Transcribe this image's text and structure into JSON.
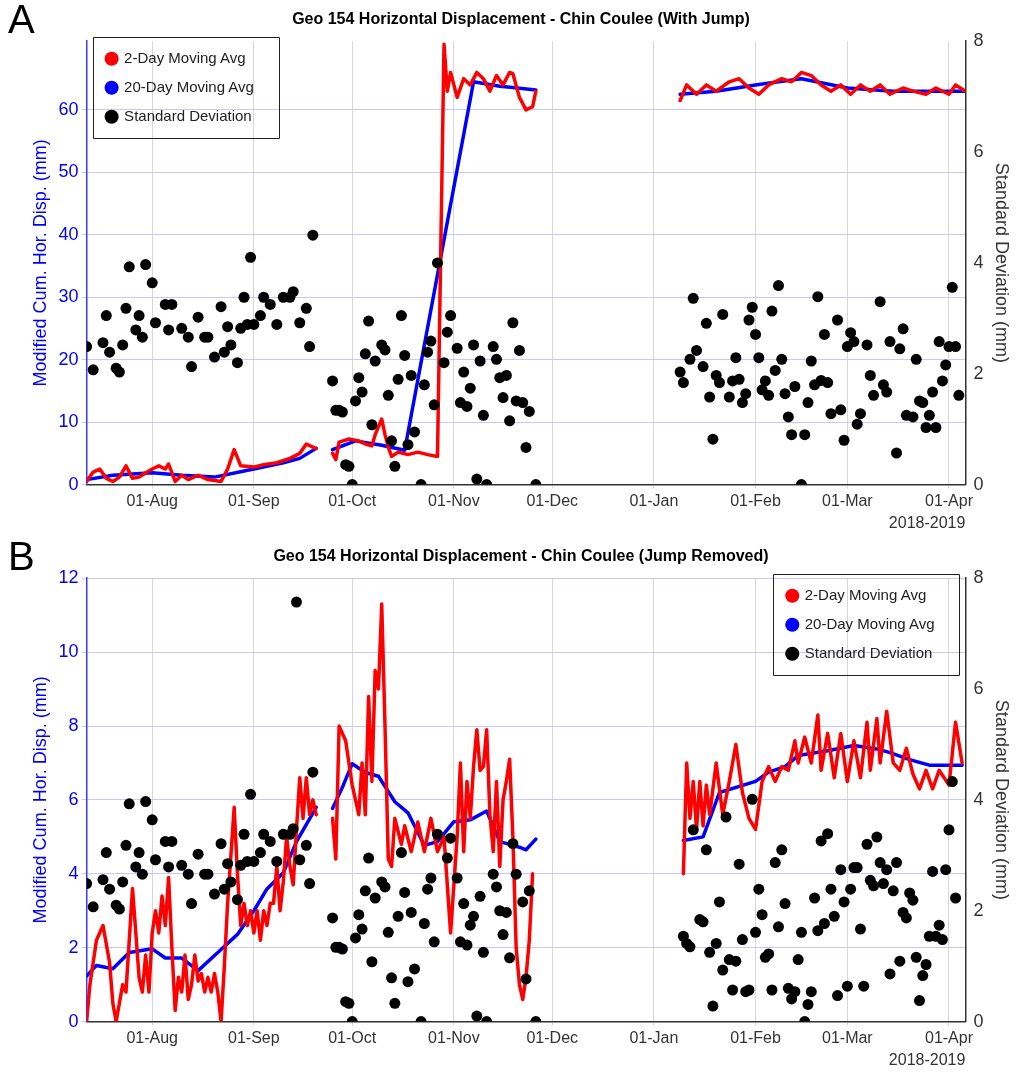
{
  "chart_data": [
    {
      "type": "line",
      "title": "Geo 154 Horizontal Displacement - Chin Coulee (With Jump)",
      "annotations": [
        "A"
      ],
      "xlabel": "2018-2019",
      "ylabel": "Modified Cum. Hor. Disp. (mm)",
      "y2label": "Standard Deviation (mm)",
      "xlim": [
        "2018-07-12",
        "2019-04-06"
      ],
      "xticks": [
        {
          "value": "2018-08-01",
          "label": "01-Aug"
        },
        {
          "value": "2018-09-01",
          "label": "01-Sep"
        },
        {
          "value": "2018-10-01",
          "label": "01-Oct"
        },
        {
          "value": "2018-11-01",
          "label": "01-Nov"
        },
        {
          "value": "2018-12-01",
          "label": "01-Dec"
        },
        {
          "value": "2019-01-01",
          "label": "01-Jan"
        },
        {
          "value": "2019-02-01",
          "label": "01-Feb"
        },
        {
          "value": "2019-03-01",
          "label": "01-Mar"
        },
        {
          "value": "2019-04-01",
          "label": "01-Apr"
        }
      ],
      "ylim": [
        0,
        71
      ],
      "yticks": [
        0,
        10,
        20,
        30,
        40,
        50,
        60
      ],
      "y2lim": [
        0,
        8
      ],
      "y2ticks": [
        0,
        2,
        4,
        6,
        8
      ],
      "grid": true,
      "legend": "top left",
      "series": [
        {
          "name": "2-Day Moving Avg",
          "color": "#ff0000",
          "x": [
            "2018-07-12",
            "2018-07-14",
            "2018-07-16",
            "2018-07-18",
            "2018-07-20",
            "2018-07-22",
            "2018-07-24",
            "2018-07-26",
            "2018-07-28",
            "2018-08-01",
            "2018-08-03",
            "2018-08-05",
            "2018-08-06",
            "2018-08-08",
            "2018-08-10",
            "2018-08-12",
            "2018-08-15",
            "2018-08-18",
            "2018-08-22",
            "2018-08-24",
            "2018-08-26",
            "2018-08-28",
            "2018-09-01",
            "2018-09-04",
            "2018-09-08",
            "2018-09-12",
            "2018-09-15",
            "2018-09-17",
            "2018-09-19",
            "2018-09-20",
            "2018-09-22",
            "2018-09-25",
            "2018-09-26",
            "2018-09-27",
            "2018-09-30",
            "2018-10-03",
            "2018-10-05",
            "2018-10-07",
            "2018-10-08",
            "2018-10-10",
            "2018-10-11",
            "2018-10-12",
            "2018-10-13",
            "2018-10-15",
            "2018-10-18",
            "2018-10-21",
            "2018-10-24",
            "2018-10-27",
            "2018-10-29",
            "2018-10-30",
            "2018-10-31",
            "2018-11-02",
            "2018-11-04",
            "2018-11-06",
            "2018-11-08",
            "2018-11-10",
            "2018-11-12",
            "2018-11-14",
            "2018-11-16",
            "2018-11-18",
            "2018-11-19",
            "2018-11-21",
            "2018-11-23",
            "2018-11-25",
            "2018-11-26",
            "2018-12-20",
            "2019-01-09",
            "2019-01-11",
            "2019-01-14",
            "2019-01-17",
            "2019-01-20",
            "2019-01-24",
            "2019-01-27",
            "2019-01-30",
            "2019-02-02",
            "2019-02-05",
            "2019-02-09",
            "2019-02-12",
            "2019-02-15",
            "2019-02-18",
            "2019-02-21",
            "2019-02-24",
            "2019-02-27",
            "2019-03-02",
            "2019-03-05",
            "2019-03-08",
            "2019-03-11",
            "2019-03-14",
            "2019-03-18",
            "2019-03-21",
            "2019-03-25",
            "2019-03-28",
            "2019-04-01",
            "2019-04-03",
            "2019-04-06"
          ],
          "values": [
            0.5,
            2,
            2.5,
            1,
            0.5,
            1.2,
            3,
            1,
            1.2,
            2.5,
            3,
            2.5,
            3.3,
            0.5,
            1.5,
            0.8,
            1.5,
            0.8,
            0.5,
            2.5,
            5.6,
            3,
            2.8,
            3.2,
            3.5,
            4.2,
            5,
            6.5,
            6,
            5.8,
            null,
            5,
            4,
            6.8,
            7.3,
            7,
            6.5,
            6.2,
            8,
            10.5,
            8,
            6,
            4.5,
            5.2,
            4.8,
            5.2,
            4.8,
            4.5,
            70.5,
            63,
            66,
            62,
            65,
            64,
            66,
            65,
            63,
            65.5,
            64,
            66,
            65.8,
            62,
            60,
            60.5,
            63,
            null,
            61.5,
            64,
            62.5,
            64,
            63,
            64.5,
            65,
            63.5,
            62.5,
            64,
            65,
            64.5,
            66,
            65.5,
            64,
            63,
            64,
            62.5,
            64,
            63,
            64,
            62.5,
            63.5,
            63,
            62.5,
            63.5,
            62.5,
            64,
            63
          ]
        },
        {
          "name": "20-Day Moving Avg",
          "color": "#0000ff",
          "x": [
            "2018-07-12",
            "2018-07-20",
            "2018-08-01",
            "2018-08-10",
            "2018-08-20",
            "2018-09-01",
            "2018-09-10",
            "2018-09-15",
            "2018-09-20",
            "2018-09-22",
            "2018-09-25",
            "2018-10-02",
            "2018-10-10",
            "2018-10-17",
            "2018-11-07",
            "2018-11-15",
            "2018-11-26",
            "2018-12-20",
            "2019-01-09",
            "2019-01-20",
            "2019-02-01",
            "2019-02-15",
            "2019-03-01",
            "2019-03-15",
            "2019-04-06"
          ],
          "values": [
            0.8,
            1.5,
            1.9,
            1.5,
            1.2,
            2.5,
            3.5,
            4.2,
            5.8,
            null,
            5.6,
            7,
            6.3,
            5.5,
            64.5,
            63.8,
            63.2,
            null,
            62.5,
            63,
            64,
            65,
            63.5,
            63,
            63
          ]
        },
        {
          "name": "Standard Deviation",
          "color": "#000000",
          "type": "scatter",
          "axis": "y2",
          "marker": "circle",
          "x": [
            "2018-07-12",
            "2018-07-14",
            "2018-07-17",
            "2018-07-18",
            "2018-07-19",
            "2018-07-21",
            "2018-07-22",
            "2018-07-23",
            "2018-07-24",
            "2018-07-25",
            "2018-07-27",
            "2018-07-28",
            "2018-07-29",
            "2018-07-30",
            "2018-08-01",
            "2018-08-02",
            "2018-08-05",
            "2018-08-06",
            "2018-08-07",
            "2018-08-10",
            "2018-08-12",
            "2018-08-13",
            "2018-08-15",
            "2018-08-17",
            "2018-08-18",
            "2018-08-20",
            "2018-08-22",
            "2018-08-23",
            "2018-08-24",
            "2018-08-25",
            "2018-08-27",
            "2018-08-28",
            "2018-08-29",
            "2018-08-30",
            "2018-08-31",
            "2018-09-01",
            "2018-09-03",
            "2018-09-04",
            "2018-09-06",
            "2018-09-08",
            "2018-09-10",
            "2018-09-12",
            "2018-09-13",
            "2018-09-15",
            "2018-09-17",
            "2018-09-18",
            "2018-09-19",
            "2018-09-25",
            "2018-09-26",
            "2018-09-27",
            "2018-09-28",
            "2018-09-29",
            "2018-09-30",
            "2018-10-01",
            "2018-10-02",
            "2018-10-03",
            "2018-10-04",
            "2018-10-05",
            "2018-10-06",
            "2018-10-07",
            "2018-10-08",
            "2018-10-10",
            "2018-10-11",
            "2018-10-12",
            "2018-10-13",
            "2018-10-14",
            "2018-10-15",
            "2018-10-16",
            "2018-10-17",
            "2018-10-18",
            "2018-10-19",
            "2018-10-20",
            "2018-10-22",
            "2018-10-23",
            "2018-10-24",
            "2018-10-25",
            "2018-10-26",
            "2018-10-27",
            "2018-10-29",
            "2018-10-30",
            "2018-10-31",
            "2018-11-02",
            "2018-11-03",
            "2018-11-04",
            "2018-11-05",
            "2018-11-06",
            "2018-11-07",
            "2018-11-08",
            "2018-11-09",
            "2018-11-10",
            "2018-11-11",
            "2018-11-13",
            "2018-11-14",
            "2018-11-15",
            "2018-11-16",
            "2018-11-17",
            "2018-11-18",
            "2018-11-19",
            "2018-11-20",
            "2018-11-21",
            "2018-11-22",
            "2018-11-23",
            "2018-11-24",
            "2018-11-26",
            "2019-01-09",
            "2019-01-10",
            "2019-01-12",
            "2019-01-13",
            "2019-01-14",
            "2019-01-16",
            "2019-01-17",
            "2019-01-18",
            "2019-01-19",
            "2019-01-20",
            "2019-01-21",
            "2019-01-22",
            "2019-01-24",
            "2019-01-25",
            "2019-01-26",
            "2019-01-27",
            "2019-01-28",
            "2019-01-29",
            "2019-01-30",
            "2019-01-31",
            "2019-02-01",
            "2019-02-02",
            "2019-02-03",
            "2019-02-04",
            "2019-02-05",
            "2019-02-06",
            "2019-02-07",
            "2019-02-08",
            "2019-02-09",
            "2019-02-10",
            "2019-02-11",
            "2019-02-12",
            "2019-02-13",
            "2019-02-15",
            "2019-02-16",
            "2019-02-17",
            "2019-02-18",
            "2019-02-19",
            "2019-02-20",
            "2019-02-21",
            "2019-02-22",
            "2019-02-23",
            "2019-02-24",
            "2019-02-26",
            "2019-02-27",
            "2019-02-28",
            "2019-03-01",
            "2019-03-02",
            "2019-03-03",
            "2019-03-04",
            "2019-03-05",
            "2019-03-07",
            "2019-03-08",
            "2019-03-09",
            "2019-03-11",
            "2019-03-12",
            "2019-03-13",
            "2019-03-14",
            "2019-03-16",
            "2019-03-17",
            "2019-03-18",
            "2019-03-19",
            "2019-03-21",
            "2019-03-22",
            "2019-03-23",
            "2019-03-24",
            "2019-03-25",
            "2019-03-26",
            "2019-03-27",
            "2019-03-28",
            "2019-03-29",
            "2019-03-30",
            "2019-03-31",
            "2019-04-01",
            "2019-04-02",
            "2019-04-03",
            "2019-04-04"
          ],
          "values": [
            2.49,
            2.07,
            2.56,
            3.05,
            2.39,
            2.1,
            2.03,
            2.52,
            3.18,
            3.93,
            2.79,
            3.05,
            2.66,
            3.97,
            3.64,
            2.92,
            3.25,
            2.79,
            3.25,
            2.82,
            2.66,
            2.13,
            3.02,
            2.66,
            2.66,
            2.3,
            3.21,
            2.39,
            2.85,
            2.52,
            2.2,
            2.82,
            3.38,
            2.89,
            4.1,
            2.89,
            3.05,
            3.38,
            3.25,
            2.89,
            3.38,
            3.38,
            3.48,
            2.92,
            3.18,
            2.49,
            4.5,
            1.87,
            1.34,
            1.34,
            1.31,
            0.36,
            0.33,
            0,
            1.51,
            1.93,
            1.67,
            2.36,
            2.95,
            1.08,
            2.23,
            2.52,
            2.43,
            1.61,
            0.79,
            0.33,
            1.9,
            3.05,
            2.33,
            0.72,
            1.97,
            0.95,
            0,
            1.8,
            2.39,
            2.59,
            1.44,
            4.0,
            2.2,
            2.75,
            3.05,
            2.46,
            1.48,
            2.03,
            1.41,
            1.74,
            2.52,
            0.1,
            2.23,
            1.25,
            0,
            2.49,
            2.26,
            1.93,
            1.57,
            1.97,
            1.15,
            2.92,
            1.51,
            2.42,
            1.48,
            0.67,
            1.32,
            0,
            2.03,
            1.84,
            2.26,
            3.36,
            2.42,
            2.13,
            2.91,
            1.58,
            0.82,
            1.97,
            1.84,
            3.07,
            1.58,
            1.87,
            2.29,
            1.9,
            1.48,
            1.64,
            2.97,
            3.2,
            2.71,
            2.29,
            1.71,
            1.87,
            1.61,
            3.13,
            2.06,
            3.59,
            2.26,
            1.64,
            1.22,
            0.9,
            1.77,
            0,
            0.9,
            1.48,
            2.23,
            1.8,
            3.39,
            1.88,
            2.71,
            1.84,
            1.28,
            2.97,
            1.35,
            0.8,
            2.49,
            2.74,
            2.58,
            1.09,
            1.28,
            2.52,
            1.97,
            1.61,
            3.3,
            1.8,
            1.67,
            2.58,
            0.57,
            2.45,
            2.81,
            1.25,
            1.22,
            2.26,
            1.51,
            1.48,
            1.03,
            1.25,
            1.67,
            1.03,
            2.58,
            1.87,
            2.16,
            2.49,
            3.56,
            2.49,
            1.61
          ]
        }
      ]
    },
    {
      "type": "line",
      "title": "Geo 154 Horizontal Displacement - Chin Coulee (Jump Removed)",
      "annotations": [
        "B"
      ],
      "xlabel": "2018-2019",
      "ylabel": "Modified Cum. Hor. Disp. (mm)",
      "y2label": "Standard Deviation (mm)",
      "xlim": [
        "2018-07-12",
        "2019-04-06"
      ],
      "xticks": [
        {
          "value": "2018-08-01",
          "label": "01-Aug"
        },
        {
          "value": "2018-09-01",
          "label": "01-Sep"
        },
        {
          "value": "2018-10-01",
          "label": "01-Oct"
        },
        {
          "value": "2018-11-01",
          "label": "01-Nov"
        },
        {
          "value": "2018-12-01",
          "label": "01-Dec"
        },
        {
          "value": "2019-01-01",
          "label": "01-Jan"
        },
        {
          "value": "2019-02-01",
          "label": "01-Feb"
        },
        {
          "value": "2019-03-01",
          "label": "01-Mar"
        },
        {
          "value": "2019-04-01",
          "label": "01-Apr"
        }
      ],
      "ylim": [
        0,
        12
      ],
      "yticks": [
        0,
        2,
        4,
        6,
        8,
        10,
        12
      ],
      "y2lim": [
        0,
        8
      ],
      "y2ticks": [
        0,
        2,
        4,
        6,
        8
      ],
      "grid": true,
      "legend": "top right",
      "series": [
        {
          "name": "2-Day Moving Avg",
          "color": "#ff0000",
          "x": [
            "2018-07-12",
            "2018-07-13",
            "2018-07-15",
            "2018-07-17",
            "2018-07-19",
            "2018-07-20",
            "2018-07-21",
            "2018-07-23",
            "2018-07-24",
            "2018-07-26",
            "2018-07-27",
            "2018-07-28",
            "2018-07-29",
            "2018-07-30",
            "2018-07-31",
            "2018-08-01",
            "2018-08-02",
            "2018-08-03",
            "2018-08-04",
            "2018-08-05",
            "2018-08-06",
            "2018-08-07",
            "2018-08-08",
            "2018-08-09",
            "2018-08-10",
            "2018-08-11",
            "2018-08-12",
            "2018-08-13",
            "2018-08-14",
            "2018-08-15",
            "2018-08-16",
            "2018-08-17",
            "2018-08-18",
            "2018-08-19",
            "2018-08-20",
            "2018-08-21",
            "2018-08-22",
            "2018-08-23",
            "2018-08-24",
            "2018-08-25",
            "2018-08-26",
            "2018-08-27",
            "2018-08-28",
            "2018-08-29",
            "2018-08-30",
            "2018-08-31",
            "2018-09-01",
            "2018-09-02",
            "2018-09-03",
            "2018-09-04",
            "2018-09-05",
            "2018-09-06",
            "2018-09-07",
            "2018-09-08",
            "2018-09-09",
            "2018-09-10",
            "2018-09-11",
            "2018-09-12",
            "2018-09-13",
            "2018-09-14",
            "2018-09-15",
            "2018-09-16",
            "2018-09-17",
            "2018-09-18",
            "2018-09-19",
            "2018-09-20",
            "2018-09-22",
            "2018-09-25",
            "2018-09-26",
            "2018-09-27",
            "2018-09-28",
            "2018-09-29",
            "2018-09-30",
            "2018-10-01",
            "2018-10-02",
            "2018-10-03",
            "2018-10-04",
            "2018-10-05",
            "2018-10-06",
            "2018-10-07",
            "2018-10-08",
            "2018-10-09",
            "2018-10-10",
            "2018-10-11",
            "2018-10-12",
            "2018-10-13",
            "2018-10-14",
            "2018-10-16",
            "2018-10-17",
            "2018-10-19",
            "2018-10-21",
            "2018-10-23",
            "2018-10-25",
            "2018-10-27",
            "2018-10-29",
            "2018-10-31",
            "2018-11-02",
            "2018-11-03",
            "2018-11-04",
            "2018-11-05",
            "2018-11-06",
            "2018-11-07",
            "2018-11-08",
            "2018-11-09",
            "2018-11-10",
            "2018-11-11",
            "2018-11-12",
            "2018-11-13",
            "2018-11-14",
            "2018-11-15",
            "2018-11-16",
            "2018-11-17",
            "2018-11-18",
            "2018-11-19",
            "2018-11-20",
            "2018-11-21",
            "2018-11-22",
            "2018-11-23",
            "2018-11-24",
            "2018-11-25",
            "2018-12-20",
            "2019-01-10",
            "2019-01-11",
            "2019-01-12",
            "2019-01-13",
            "2019-01-14",
            "2019-01-15",
            "2019-01-16",
            "2019-01-17",
            "2019-01-18",
            "2019-01-20",
            "2019-01-22",
            "2019-01-24",
            "2019-01-26",
            "2019-01-28",
            "2019-01-30",
            "2019-02-01",
            "2019-02-03",
            "2019-02-05",
            "2019-02-07",
            "2019-02-09",
            "2019-02-11",
            "2019-02-13",
            "2019-02-14",
            "2019-02-16",
            "2019-02-18",
            "2019-02-20",
            "2019-02-21",
            "2019-02-23",
            "2019-02-25",
            "2019-02-27",
            "2019-03-01",
            "2019-03-03",
            "2019-03-05",
            "2019-03-07",
            "2019-03-08",
            "2019-03-10",
            "2019-03-11",
            "2019-03-13",
            "2019-03-15",
            "2019-03-17",
            "2019-03-19",
            "2019-03-21",
            "2019-03-23",
            "2019-03-25",
            "2019-03-27",
            "2019-03-29",
            "2019-04-01",
            "2019-04-03",
            "2019-04-05"
          ],
          "values": [
            0,
            1.0,
            2.2,
            2.6,
            1.6,
            0.5,
            0,
            1.0,
            0.8,
            3.6,
            2.4,
            1.2,
            0.8,
            1.8,
            0.8,
            2.4,
            3.0,
            2.4,
            3.4,
            2.6,
            3.9,
            2.0,
            0.3,
            1.2,
            0.8,
            1.8,
            0.6,
            1.0,
            1.8,
            1.1,
            1.3,
            0.8,
            1.2,
            0.8,
            1.3,
            0.8,
            0,
            1.5,
            3.2,
            4.5,
            5.8,
            4.0,
            2.6,
            3.2,
            2.6,
            3.0,
            2.4,
            3.0,
            2.2,
            3.0,
            2.6,
            3.2,
            3.2,
            4.2,
            3.0,
            3.8,
            5.0,
            4.2,
            3.7,
            5.2,
            6.6,
            5.5,
            6.6,
            5.6,
            6.0,
            5.6,
            null,
            5.5,
            4.4,
            8.0,
            7.8,
            7.6,
            7.0,
            6.4,
            6.0,
            5.6,
            7.0,
            5.6,
            8.8,
            6.5,
            9.5,
            9.0,
            11.3,
            8.0,
            4.4,
            4.2,
            5.5,
            4.8,
            5.3,
            4.6,
            5.4,
            4.6,
            5.5,
            4.6,
            5.0,
            2.4,
            5.0,
            7.0,
            4.6,
            6.5,
            5.5,
            6.9,
            7.9,
            6.8,
            6.9,
            7.9,
            5.6,
            4.6,
            6.5,
            4.2,
            6.0,
            6.5,
            7.1,
            5.0,
            2.0,
            1.0,
            0.6,
            1.2,
            2.2,
            4.0,
            null,
            4.0,
            7.0,
            5.5,
            6.5,
            5.2,
            6.5,
            5.3,
            6.4,
            5.6,
            7.0,
            5.6,
            6.5,
            7.5,
            6.2,
            5.5,
            5.2,
            6.5,
            6.9,
            6.5,
            6.9,
            6.8,
            7.6,
            7.0,
            7.7,
            7.0,
            8.3,
            6.8,
            7.8,
            6.6,
            7.8,
            6.5,
            7.6,
            6.6,
            8.1,
            6.8,
            8.2,
            7.0,
            8.4,
            7.0,
            6.8,
            7.4,
            6.7,
            6.3,
            6.8,
            6.3,
            6.8,
            6.4,
            8.1,
            7.0
          ]
        },
        {
          "name": "20-Day Moving Avg",
          "color": "#0000ff",
          "x": [
            "2018-07-12",
            "2018-07-15",
            "2018-07-20",
            "2018-07-25",
            "2018-08-01",
            "2018-08-05",
            "2018-08-10",
            "2018-08-15",
            "2018-08-21",
            "2018-08-27",
            "2018-09-01",
            "2018-09-05",
            "2018-09-10",
            "2018-09-14",
            "2018-09-20",
            "2018-09-22",
            "2018-09-25",
            "2018-09-28",
            "2018-10-01",
            "2018-10-05",
            "2018-10-09",
            "2018-10-14",
            "2018-10-18",
            "2018-10-23",
            "2018-10-27",
            "2018-11-01",
            "2018-11-06",
            "2018-11-11",
            "2018-11-15",
            "2018-11-21",
            "2018-11-23",
            "2018-11-26",
            "2018-12-20",
            "2019-01-10",
            "2019-01-16",
            "2019-01-21",
            "2019-02-01",
            "2019-02-05",
            "2019-02-10",
            "2019-02-14",
            "2019-02-23",
            "2019-03-03",
            "2019-03-10",
            "2019-03-14",
            "2019-03-20",
            "2019-03-26",
            "2019-04-05"
          ],
          "values": [
            1.23,
            1.52,
            1.43,
            1.87,
            1.97,
            1.72,
            1.72,
            1.38,
            1.87,
            2.36,
            3.0,
            3.59,
            4.03,
            4.87,
            5.8,
            null,
            5.77,
            6.34,
            6.98,
            6.74,
            6.64,
            5.95,
            5.65,
            4.77,
            4.87,
            5.41,
            5.46,
            5.7,
            4.87,
            4.72,
            4.65,
            4.94,
            null,
            4.9,
            5.0,
            6.2,
            6.5,
            6.75,
            6.9,
            7.2,
            7.33,
            7.47,
            7.38,
            7.28,
            7.09,
            6.94,
            6.94
          ]
        },
        {
          "name": "Standard Deviation",
          "color": "#000000",
          "type": "scatter",
          "axis": "y2",
          "marker": "circle",
          "x": [
            "2018-07-12",
            "2018-07-14",
            "2018-07-17",
            "2018-07-18",
            "2018-07-19",
            "2018-07-21",
            "2018-07-22",
            "2018-07-23",
            "2018-07-24",
            "2018-07-25",
            "2018-07-27",
            "2018-07-28",
            "2018-07-29",
            "2018-07-30",
            "2018-08-01",
            "2018-08-02",
            "2018-08-05",
            "2018-08-06",
            "2018-08-07",
            "2018-08-10",
            "2018-08-12",
            "2018-08-13",
            "2018-08-15",
            "2018-08-17",
            "2018-08-18",
            "2018-08-20",
            "2018-08-22",
            "2018-08-23",
            "2018-08-24",
            "2018-08-25",
            "2018-08-27",
            "2018-08-28",
            "2018-08-29",
            "2018-08-30",
            "2018-08-31",
            "2018-09-01",
            "2018-09-03",
            "2018-09-04",
            "2018-09-06",
            "2018-09-08",
            "2018-09-10",
            "2018-09-12",
            "2018-09-13",
            "2018-09-14",
            "2018-09-15",
            "2018-09-17",
            "2018-09-18",
            "2018-09-19",
            "2018-09-25",
            "2018-09-26",
            "2018-09-27",
            "2018-09-28",
            "2018-09-29",
            "2018-09-30",
            "2018-10-01",
            "2018-10-02",
            "2018-10-03",
            "2018-10-04",
            "2018-10-05",
            "2018-10-06",
            "2018-10-07",
            "2018-10-08",
            "2018-10-10",
            "2018-10-11",
            "2018-10-12",
            "2018-10-13",
            "2018-10-14",
            "2018-10-15",
            "2018-10-16",
            "2018-10-17",
            "2018-10-18",
            "2018-10-19",
            "2018-10-20",
            "2018-10-22",
            "2018-10-23",
            "2018-10-24",
            "2018-10-25",
            "2018-10-26",
            "2018-10-27",
            "2018-10-30",
            "2018-10-31",
            "2018-11-02",
            "2018-11-03",
            "2018-11-04",
            "2018-11-05",
            "2018-11-06",
            "2018-11-07",
            "2018-11-08",
            "2018-11-09",
            "2018-11-10",
            "2018-11-11",
            "2018-11-13",
            "2018-11-14",
            "2018-11-15",
            "2018-11-16",
            "2018-11-17",
            "2018-11-18",
            "2018-11-19",
            "2018-11-20",
            "2018-11-22",
            "2018-11-23",
            "2018-11-24",
            "2018-11-26",
            "2019-01-10",
            "2019-01-11",
            "2019-01-12",
            "2019-01-13",
            "2019-01-15",
            "2019-01-16",
            "2019-01-17",
            "2019-01-18",
            "2019-01-19",
            "2019-01-20",
            "2019-01-21",
            "2019-01-22",
            "2019-01-23",
            "2019-01-24",
            "2019-01-25",
            "2019-01-26",
            "2019-01-27",
            "2019-01-28",
            "2019-01-29",
            "2019-01-30",
            "2019-01-31",
            "2019-02-01",
            "2019-02-02",
            "2019-02-03",
            "2019-02-04",
            "2019-02-05",
            "2019-02-06",
            "2019-02-07",
            "2019-02-08",
            "2019-02-09",
            "2019-02-10",
            "2019-02-11",
            "2019-02-12",
            "2019-02-13",
            "2019-02-14",
            "2019-02-15",
            "2019-02-16",
            "2019-02-17",
            "2019-02-18",
            "2019-02-19",
            "2019-02-20",
            "2019-02-21",
            "2019-02-22",
            "2019-02-23",
            "2019-02-24",
            "2019-02-25",
            "2019-02-26",
            "2019-02-27",
            "2019-02-28",
            "2019-03-01",
            "2019-03-02",
            "2019-03-03",
            "2019-03-04",
            "2019-03-05",
            "2019-03-06",
            "2019-03-07",
            "2019-03-08",
            "2019-03-09",
            "2019-03-10",
            "2019-03-11",
            "2019-03-12",
            "2019-03-13",
            "2019-03-14",
            "2019-03-15",
            "2019-03-16",
            "2019-03-17",
            "2019-03-18",
            "2019-03-19",
            "2019-03-20",
            "2019-03-21",
            "2019-03-22",
            "2019-03-23",
            "2019-03-24",
            "2019-03-25",
            "2019-03-26",
            "2019-03-27",
            "2019-03-28",
            "2019-03-29",
            "2019-03-30",
            "2019-03-31",
            "2019-04-01",
            "2019-04-02",
            "2019-04-03"
          ],
          "values": [
            2.49,
            2.07,
            2.56,
            3.05,
            2.39,
            2.1,
            2.03,
            2.52,
            3.18,
            3.93,
            2.79,
            3.05,
            2.66,
            3.97,
            3.64,
            2.92,
            3.25,
            2.79,
            3.25,
            2.82,
            2.66,
            2.13,
            3.02,
            2.66,
            2.66,
            2.3,
            3.21,
            2.39,
            2.85,
            2.52,
            2.2,
            2.82,
            3.38,
            2.89,
            4.1,
            2.89,
            3.05,
            3.38,
            3.25,
            2.89,
            3.38,
            3.38,
            3.48,
            7.57,
            2.92,
            3.18,
            2.49,
            4.5,
            1.87,
            1.34,
            1.34,
            1.31,
            0.36,
            0.33,
            0,
            1.51,
            1.93,
            1.67,
            2.36,
            2.95,
            1.08,
            2.23,
            2.52,
            2.43,
            1.61,
            0.79,
            0.33,
            1.9,
            3.05,
            2.33,
            0.72,
            1.97,
            0.95,
            0,
            1.77,
            2.39,
            2.59,
            1.44,
            3.38,
            2.95,
            3.31,
            2.59,
            1.44,
            2.13,
            1.38,
            1.74,
            1.9,
            0.1,
            2.26,
            1.25,
            0,
            2.66,
            2.43,
            2.0,
            1.57,
            1.97,
            1.15,
            3.21,
            2.66,
            2.16,
            0.77,
            2.36,
            0,
            1.54,
            1.41,
            1.35,
            3.46,
            1.84,
            1.8,
            3.1,
            1.25,
            0.28,
            1.41,
            2.16,
            0.93,
            3.69,
            1.12,
            0.57,
            1.09,
            2.84,
            1.48,
            0.54,
            0.57,
            4.01,
            1.61,
            2.39,
            1.93,
            1.16,
            1.22,
            0.57,
            2.87,
            1.71,
            3.1,
            2.13,
            0.6,
            0.41,
            0.54,
            1.12,
            1.61,
            0,
            0.31,
            0.54,
            2.23,
            1.64,
            3.26,
            1.77,
            3.39,
            2.39,
            1.9,
            0.47,
            2.74,
            2.16,
            0.64,
            2.39,
            2.78,
            2.78,
            1.67,
            0.64,
            3.2,
            2.55,
            2.45,
            3.33,
            2.87,
            2.49,
            2.74,
            0.86,
            2.36,
            2.87,
            1.09,
            1.97,
            1.87,
            2.32,
            2.19,
            1.16,
            0.38,
            0.83,
            1.03,
            1.54,
            2.71,
            1.54,
            1.74,
            1.48,
            2.74,
            3.46,
            4.33,
            2.23
          ]
        }
      ]
    }
  ]
}
